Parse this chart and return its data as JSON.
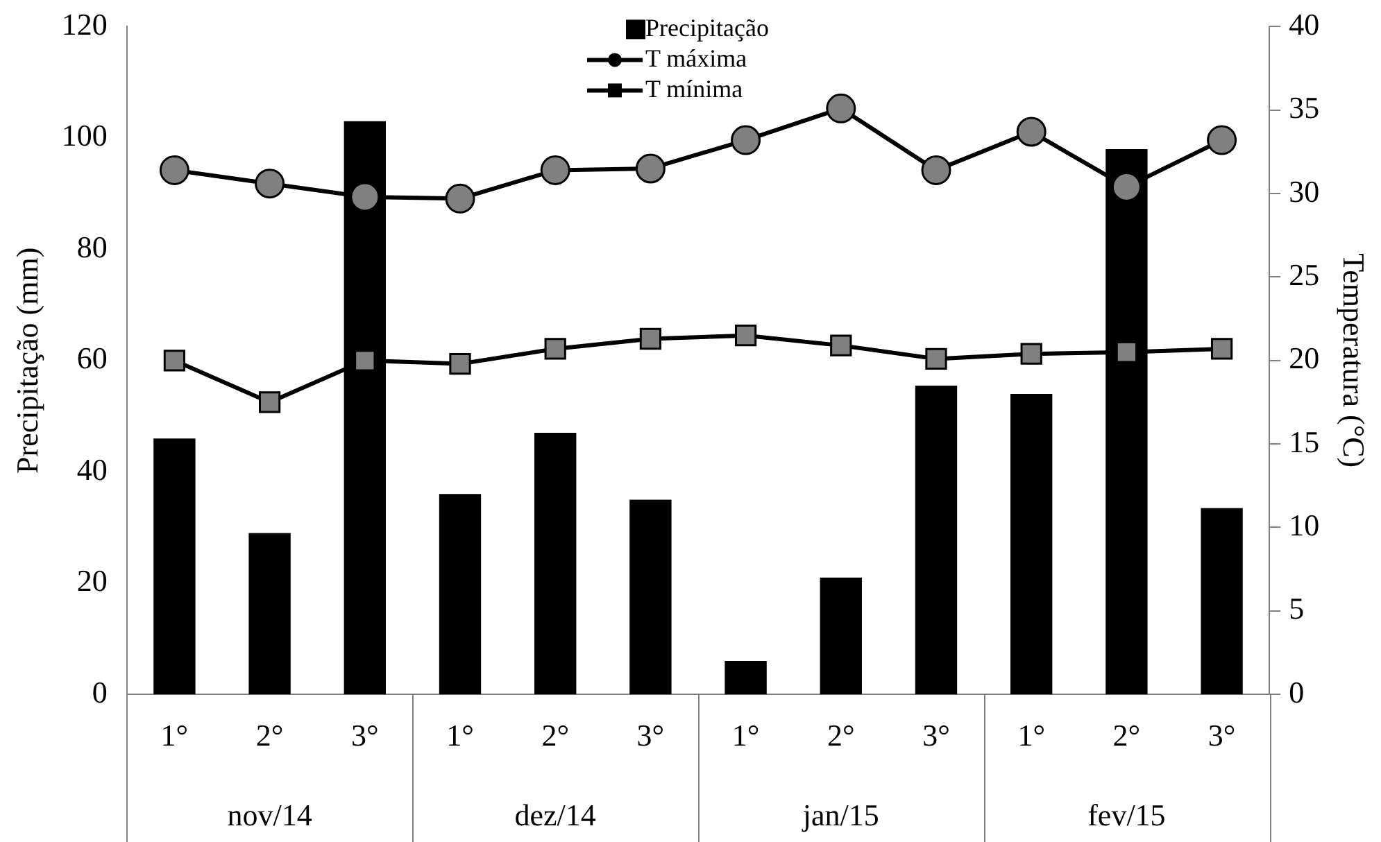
{
  "chart_data": {
    "type": "bar",
    "categories": [
      "1°",
      "2°",
      "3°",
      "1°",
      "2°",
      "3°",
      "1°",
      "2°",
      "3°",
      "1°",
      "2°",
      "3°"
    ],
    "annotations": [
      "nov/14",
      "dez/14",
      "jan/15",
      "fev/15"
    ],
    "ylabel": "Precipitação (mm)",
    "y2label": "Temperatura (°C)",
    "ylim": [
      0,
      120
    ],
    "yticks": [
      0,
      20,
      40,
      60,
      80,
      100,
      120
    ],
    "y2lim": [
      0,
      40
    ],
    "y2ticks": [
      0,
      5,
      10,
      15,
      20,
      25,
      30,
      35,
      40
    ],
    "legend": "top",
    "grid": false,
    "series": [
      {
        "name": "Precipitação",
        "color": "#000000",
        "values": [
          46,
          29,
          103,
          36,
          47,
          35,
          6,
          21,
          55.5,
          54,
          98,
          33.5
        ]
      },
      {
        "name": "T máxima",
        "type": "line",
        "axis": "y2",
        "marker": "circle",
        "color": "#000000",
        "values": [
          31.4,
          30.6,
          29.8,
          29.7,
          31.4,
          31.5,
          33.2,
          35.1,
          31.4,
          33.7,
          30.4,
          33.2
        ]
      },
      {
        "name": "T mínima",
        "type": "line",
        "axis": "y2",
        "marker": "square",
        "color": "#000000",
        "values": [
          20,
          17.5,
          20,
          19.8,
          20.7,
          21.3,
          21.5,
          20.9,
          20.1,
          20.4,
          20.5,
          20.7
        ]
      }
    ]
  }
}
